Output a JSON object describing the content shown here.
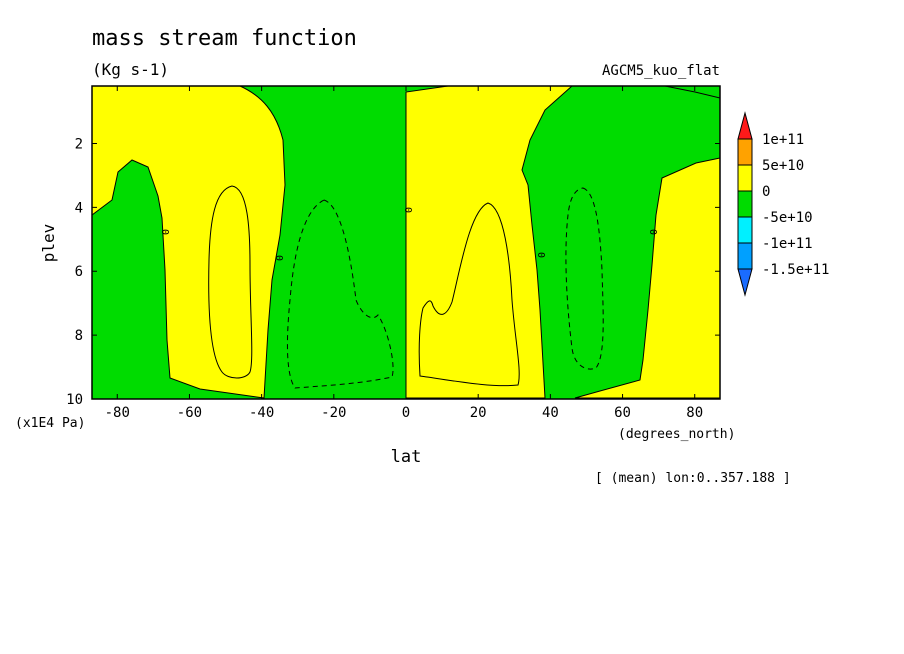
{
  "chart_data": {
    "type": "heatmap",
    "title": "mass stream function",
    "units": "(Kg s-1)",
    "experiment": "AGCM5_kuo_flat",
    "xlabel": "lat",
    "xunits": "(degrees_north)",
    "ylabel": "plev",
    "yunits": "(x1E4 Pa)",
    "footnote": "[ (mean) lon:0..357.188 ]",
    "xlim": [
      -87,
      87
    ],
    "ylim": [
      10,
      0.2
    ],
    "x_ticks": [
      -80,
      -60,
      -40,
      -20,
      0,
      20,
      40,
      60,
      80
    ],
    "y_ticks": [
      2,
      4,
      6,
      8,
      10
    ],
    "colorbar": {
      "labels": [
        "1e+11",
        "5e+10",
        "0",
        "-5e+10",
        "-1e+11",
        "-1.5e+11"
      ],
      "colors": [
        "#ff1a1a",
        "#ffa200",
        "#ffff00",
        "#00dc00",
        "#00f0ff",
        "#00a0ff",
        "#1a6cff"
      ]
    },
    "contour_labels": [
      "0",
      "0",
      "0",
      "0",
      "0"
    ],
    "regions": [
      {
        "name": "positive-cell-south-polar",
        "lat": [
          -87,
          -38
        ],
        "plev": [
          0.2,
          9.8
        ],
        "sign": "positive",
        "extremum": "5e+10"
      },
      {
        "name": "negative-cell-southern",
        "lat": [
          -38,
          0
        ],
        "plev": [
          0.2,
          10
        ],
        "sign": "negative",
        "extremum": "-5e+10"
      },
      {
        "name": "positive-cell-northern",
        "lat": [
          0,
          38
        ],
        "plev": [
          0.2,
          10
        ],
        "sign": "positive",
        "extremum": "5e+10"
      },
      {
        "name": "negative-cell-north-mid",
        "lat": [
          38,
          70
        ],
        "plev": [
          0.2,
          9.6
        ],
        "sign": "negative",
        "extremum": "-5e+10"
      },
      {
        "name": "positive-cell-north-polar",
        "lat": [
          70,
          87
        ],
        "plev": [
          2.4,
          10
        ],
        "sign": "positive",
        "extremum": "5e+10"
      }
    ],
    "grid": false,
    "legend_position": "right"
  }
}
